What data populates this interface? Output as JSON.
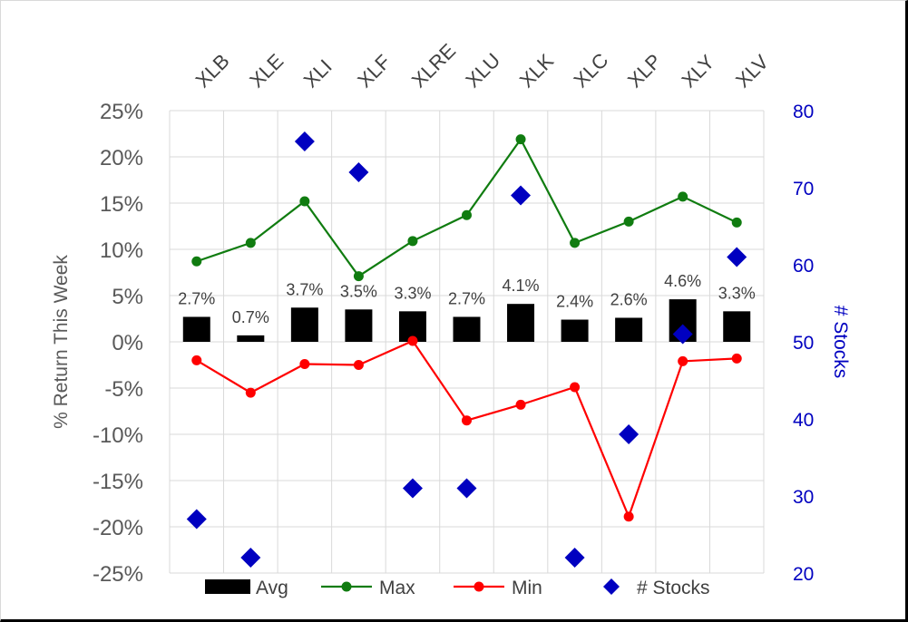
{
  "chart_data": {
    "type": "bar",
    "categories": [
      "XLB",
      "XLE",
      "XLI",
      "XLF",
      "XLRE",
      "XLU",
      "XLK",
      "XLC",
      "XLP",
      "XLY",
      "XLV"
    ],
    "series": [
      {
        "name": "Avg",
        "kind": "bar",
        "axis": "left",
        "values": [
          2.7,
          0.7,
          3.7,
          3.5,
          3.3,
          2.7,
          4.1,
          2.4,
          2.6,
          4.6,
          3.3
        ],
        "labels": [
          "2.7%",
          "0.7%",
          "3.7%",
          "3.5%",
          "3.3%",
          "2.7%",
          "4.1%",
          "2.4%",
          "2.6%",
          "4.6%",
          "3.3%"
        ]
      },
      {
        "name": "Max",
        "kind": "line",
        "axis": "left",
        "values": [
          8.7,
          10.7,
          15.2,
          7.1,
          10.9,
          13.7,
          21.9,
          10.7,
          13.0,
          15.7,
          12.9
        ]
      },
      {
        "name": "Min",
        "kind": "line",
        "axis": "left",
        "values": [
          -2.0,
          -5.5,
          -2.4,
          -2.5,
          0.1,
          -8.5,
          -6.8,
          -4.9,
          -18.9,
          -2.1,
          -1.8
        ]
      },
      {
        "name": "# Stocks",
        "kind": "scatter",
        "axis": "right",
        "values": [
          27,
          22,
          76,
          72,
          31,
          31,
          69,
          22,
          38,
          51,
          61
        ]
      }
    ],
    "ylabel": "% Return This Week",
    "y2label": "# Stocks",
    "ylim": [
      -25,
      25
    ],
    "y2lim": [
      20,
      80
    ],
    "yticks": [
      "25%",
      "20%",
      "15%",
      "10%",
      "5%",
      "0%",
      "-5%",
      "-10%",
      "-15%",
      "-20%",
      "-25%"
    ],
    "y2ticks": [
      "80",
      "70",
      "60",
      "50",
      "40",
      "30",
      "20"
    ],
    "legend": [
      "Avg",
      "Max",
      "Min",
      "# Stocks"
    ],
    "legend_position": "bottom",
    "grid": true,
    "colors": {
      "Avg": "#000000",
      "Max": "#107c10",
      "Min": "#ff0000",
      "# Stocks": "#0000c0",
      "left_axis_text": "#595959",
      "right_axis_text": "#0000c0",
      "grid": "#d9d9d9"
    }
  }
}
